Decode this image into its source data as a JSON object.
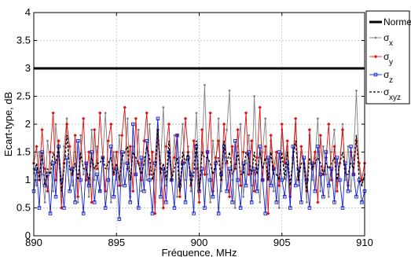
{
  "chart_data": {
    "type": "line",
    "title": "",
    "xlabel": "Fréquence, MHz",
    "ylabel": "Ecart-type, dB",
    "xlim": [
      890,
      910
    ],
    "ylim": [
      0,
      4
    ],
    "xticks": [
      "890",
      "895",
      "900",
      "905",
      "910"
    ],
    "yticks": [
      "0",
      "0.5",
      "1",
      "1.5",
      "2",
      "2.5",
      "3",
      "3.5",
      "4"
    ],
    "grid": true,
    "legend_position": "right",
    "legend": [
      {
        "key": "norme",
        "label": "Norme",
        "sub": ""
      },
      {
        "key": "sx",
        "label": "σ",
        "sub": "x"
      },
      {
        "key": "sy",
        "label": "σ",
        "sub": "y"
      },
      {
        "key": "sz",
        "label": "σ",
        "sub": "z"
      },
      {
        "key": "sxyz",
        "label": "σ",
        "sub": "xyz"
      }
    ],
    "colors": {
      "norme": "#000000",
      "sx": "#808080",
      "sy": "#e01010",
      "sz": "#1020d0",
      "sxyz": "#000000"
    },
    "series": [
      {
        "key": "norme",
        "x": [
          890,
          910
        ],
        "values": [
          3,
          3
        ]
      },
      {
        "key": "sx",
        "x": [
          890.0,
          890.17,
          890.33,
          890.5,
          890.67,
          890.83,
          891.0,
          891.17,
          891.33,
          891.5,
          891.67,
          891.83,
          892.0,
          892.17,
          892.33,
          892.5,
          892.67,
          892.83,
          893.0,
          893.17,
          893.33,
          893.5,
          893.67,
          893.83,
          894.0,
          894.17,
          894.33,
          894.5,
          894.67,
          894.83,
          895.0,
          895.17,
          895.33,
          895.5,
          895.67,
          895.83,
          896.0,
          896.17,
          896.33,
          896.5,
          896.67,
          896.83,
          897.0,
          897.17,
          897.33,
          897.5,
          897.67,
          897.83,
          898.0,
          898.17,
          898.33,
          898.5,
          898.67,
          898.83,
          899.0,
          899.17,
          899.33,
          899.5,
          899.67,
          899.83,
          900.0,
          900.17,
          900.33,
          900.5,
          900.67,
          900.83,
          901.0,
          901.17,
          901.33,
          901.5,
          901.67,
          901.83,
          902.0,
          902.17,
          902.33,
          902.5,
          902.67,
          902.83,
          903.0,
          903.17,
          903.33,
          903.5,
          903.67,
          903.83,
          904.0,
          904.17,
          904.33,
          904.5,
          904.67,
          904.83,
          905.0,
          905.17,
          905.33,
          905.5,
          905.67,
          905.83,
          906.0,
          906.17,
          906.33,
          906.5,
          906.67,
          906.83,
          907.0,
          907.17,
          907.33,
          907.5,
          907.67,
          907.83,
          908.0,
          908.17,
          908.33,
          908.5,
          908.67,
          908.83,
          909.0,
          909.17,
          909.33,
          909.5,
          909.67,
          909.83,
          910.0
        ],
        "values": [
          1.2,
          0.9,
          1.5,
          1.1,
          0.6,
          1.7,
          1.3,
          0.8,
          2.0,
          1.4,
          0.7,
          1.6,
          2.1,
          1.2,
          0.9,
          1.5,
          0.6,
          1.8,
          1.1,
          1.3,
          0.7,
          1.9,
          1.0,
          1.6,
          0.8,
          1.4,
          2.2,
          1.2,
          0.6,
          1.5,
          1.0,
          1.8,
          0.9,
          1.3,
          2.1,
          0.7,
          1.6,
          1.1,
          1.9,
          0.8,
          1.4,
          1.0,
          2.0,
          1.2,
          0.6,
          1.7,
          1.3,
          2.3,
          0.9,
          1.5,
          1.1,
          1.8,
          0.7,
          1.4,
          2.0,
          1.0,
          1.6,
          0.8,
          1.3,
          2.2,
          0.9,
          1.5,
          2.7,
          1.1,
          0.6,
          1.7,
          1.2,
          2.1,
          0.8,
          1.4,
          1.9,
          2.6,
          1.0,
          0.5,
          1.6,
          2.0,
          0.7,
          1.3,
          1.8,
          0.9,
          2.5,
          1.2,
          0.6,
          1.5,
          2.1,
          1.0,
          1.7,
          0.8,
          1.4,
          0.5,
          1.9,
          1.1,
          1.6,
          0.7,
          1.3,
          2.0,
          0.9,
          1.5,
          1.2,
          0.6,
          1.8,
          1.0,
          1.4,
          2.1,
          0.8,
          1.6,
          1.1,
          0.7,
          1.5,
          1.9,
          0.9,
          1.3,
          2.0,
          1.0,
          1.6,
          0.8,
          1.4,
          2.6,
          1.2,
          0.9,
          1.1
        ]
      },
      {
        "key": "sy",
        "x": [
          890.0,
          890.17,
          890.33,
          890.5,
          890.67,
          890.83,
          891.0,
          891.17,
          891.33,
          891.5,
          891.67,
          891.83,
          892.0,
          892.17,
          892.33,
          892.5,
          892.67,
          892.83,
          893.0,
          893.17,
          893.33,
          893.5,
          893.67,
          893.83,
          894.0,
          894.17,
          894.33,
          894.5,
          894.67,
          894.83,
          895.0,
          895.17,
          895.33,
          895.5,
          895.67,
          895.83,
          896.0,
          896.17,
          896.33,
          896.5,
          896.67,
          896.83,
          897.0,
          897.17,
          897.33,
          897.5,
          897.67,
          897.83,
          898.0,
          898.17,
          898.33,
          898.5,
          898.67,
          898.83,
          899.0,
          899.17,
          899.33,
          899.5,
          899.67,
          899.83,
          900.0,
          900.17,
          900.33,
          900.5,
          900.67,
          900.83,
          901.0,
          901.17,
          901.33,
          901.5,
          901.67,
          901.83,
          902.0,
          902.17,
          902.33,
          902.5,
          902.67,
          902.83,
          903.0,
          903.17,
          903.33,
          903.5,
          903.67,
          903.83,
          904.0,
          904.17,
          904.33,
          904.5,
          904.67,
          904.83,
          905.0,
          905.17,
          905.33,
          905.5,
          905.67,
          905.83,
          906.0,
          906.17,
          906.33,
          906.5,
          906.67,
          906.83,
          907.0,
          907.17,
          907.33,
          907.5,
          907.67,
          907.83,
          908.0,
          908.17,
          908.33,
          908.5,
          908.67,
          908.83,
          909.0,
          909.17,
          909.33,
          909.5,
          909.67,
          909.83,
          910.0
        ],
        "values": [
          1.3,
          1.6,
          1.0,
          1.9,
          1.2,
          0.8,
          1.5,
          2.2,
          1.0,
          1.7,
          0.5,
          1.3,
          2.0,
          1.6,
          1.1,
          1.8,
          0.7,
          1.4,
          2.1,
          1.0,
          1.5,
          0.6,
          1.9,
          1.2,
          2.2,
          1.4,
          0.8,
          1.7,
          2.0,
          1.1,
          1.5,
          0.9,
          1.8,
          2.3,
          1.2,
          1.6,
          0.8,
          2.1,
          1.3,
          1.0,
          1.7,
          2.2,
          1.1,
          1.5,
          0.4,
          1.9,
          1.2,
          0.5,
          1.6,
          2.0,
          1.0,
          1.4,
          1.8,
          0.7,
          1.3,
          2.1,
          1.5,
          0.9,
          1.7,
          1.2,
          0.6,
          1.9,
          1.1,
          1.5,
          2.2,
          0.8,
          1.4,
          1.7,
          1.0,
          2.0,
          1.3,
          0.7,
          1.6,
          1.2,
          1.9,
          0.9,
          1.5,
          2.2,
          1.1,
          1.7,
          0.8,
          1.4,
          2.3,
          1.0,
          1.6,
          0.4,
          1.8,
          1.2,
          1.5,
          0.9,
          2.0,
          1.3,
          1.7,
          0.7,
          1.4,
          2.1,
          1.0,
          1.6,
          1.3,
          0.8,
          1.9,
          1.2,
          1.5,
          0.6,
          1.8,
          1.1,
          1.4,
          2.0,
          1.0,
          1.6,
          0.8,
          1.3,
          1.9,
          1.2,
          0.9,
          1.5,
          1.1,
          1.7,
          1.3,
          1.0,
          1.3
        ]
      },
      {
        "key": "sz",
        "x": [
          890.0,
          890.17,
          890.33,
          890.5,
          890.67,
          890.83,
          891.0,
          891.17,
          891.33,
          891.5,
          891.67,
          891.83,
          892.0,
          892.17,
          892.33,
          892.5,
          892.67,
          892.83,
          893.0,
          893.17,
          893.33,
          893.5,
          893.67,
          893.83,
          894.0,
          894.17,
          894.33,
          894.5,
          894.67,
          894.83,
          895.0,
          895.17,
          895.33,
          895.5,
          895.67,
          895.83,
          896.0,
          896.17,
          896.33,
          896.5,
          896.67,
          896.83,
          897.0,
          897.17,
          897.33,
          897.5,
          897.67,
          897.83,
          898.0,
          898.17,
          898.33,
          898.5,
          898.67,
          898.83,
          899.0,
          899.17,
          899.33,
          899.5,
          899.67,
          899.83,
          900.0,
          900.17,
          900.33,
          900.5,
          900.67,
          900.83,
          901.0,
          901.17,
          901.33,
          901.5,
          901.67,
          901.83,
          902.0,
          902.17,
          902.33,
          902.5,
          902.67,
          902.83,
          903.0,
          903.17,
          903.33,
          903.5,
          903.67,
          903.83,
          904.0,
          904.17,
          904.33,
          904.5,
          904.67,
          904.83,
          905.0,
          905.17,
          905.33,
          905.5,
          905.67,
          905.83,
          906.0,
          906.17,
          906.33,
          906.5,
          906.67,
          906.83,
          907.0,
          907.17,
          907.33,
          907.5,
          907.67,
          907.83,
          908.0,
          908.17,
          908.33,
          908.5,
          908.67,
          908.83,
          909.0,
          909.17,
          909.33,
          909.5,
          909.67,
          909.83,
          910.0
        ],
        "values": [
          0.8,
          1.2,
          0.5,
          1.5,
          0.9,
          1.1,
          0.4,
          1.3,
          0.7,
          1.6,
          1.0,
          0.5,
          1.4,
          0.8,
          1.2,
          0.6,
          1.7,
          1.0,
          0.4,
          1.3,
          0.9,
          1.5,
          0.6,
          1.1,
          0.8,
          1.4,
          0.5,
          1.0,
          1.6,
          0.7,
          1.2,
          0.3,
          1.5,
          0.9,
          1.3,
          0.6,
          2.0,
          1.1,
          0.5,
          1.4,
          0.8,
          1.7,
          1.0,
          0.4,
          1.3,
          2.1,
          0.7,
          1.2,
          0.6,
          1.5,
          1.0,
          0.5,
          1.8,
          0.9,
          1.3,
          0.6,
          1.4,
          1.1,
          0.4,
          1.6,
          0.8,
          1.2,
          0.5,
          1.5,
          1.0,
          0.7,
          1.3,
          0.4,
          1.1,
          1.6,
          0.8,
          1.2,
          0.6,
          1.7,
          1.0,
          0.5,
          1.3,
          0.9,
          1.5,
          0.6,
          1.2,
          0.8,
          1.6,
          1.0,
          0.4,
          1.4,
          0.9,
          1.2,
          0.6,
          1.5,
          1.0,
          0.7,
          1.3,
          0.5,
          1.6,
          0.9,
          1.2,
          0.6,
          1.4,
          1.0,
          0.5,
          1.3,
          0.8,
          1.6,
          1.1,
          0.7,
          1.5,
          0.9,
          1.2,
          0.6,
          1.4,
          1.0,
          0.5,
          1.3,
          0.8,
          1.6,
          1.1,
          0.7,
          1.0,
          0.6,
          0.8
        ]
      },
      {
        "key": "sxyz",
        "x": [
          890.0,
          890.17,
          890.33,
          890.5,
          890.67,
          890.83,
          891.0,
          891.17,
          891.33,
          891.5,
          891.67,
          891.83,
          892.0,
          892.17,
          892.33,
          892.5,
          892.67,
          892.83,
          893.0,
          893.17,
          893.33,
          893.5,
          893.67,
          893.83,
          894.0,
          894.17,
          894.33,
          894.5,
          894.67,
          894.83,
          895.0,
          895.17,
          895.33,
          895.5,
          895.67,
          895.83,
          896.0,
          896.17,
          896.33,
          896.5,
          896.67,
          896.83,
          897.0,
          897.17,
          897.33,
          897.5,
          897.67,
          897.83,
          898.0,
          898.17,
          898.33,
          898.5,
          898.67,
          898.83,
          899.0,
          899.17,
          899.33,
          899.5,
          899.67,
          899.83,
          900.0,
          900.17,
          900.33,
          900.5,
          900.67,
          900.83,
          901.0,
          901.17,
          901.33,
          901.5,
          901.67,
          901.83,
          902.0,
          902.17,
          902.33,
          902.5,
          902.67,
          902.83,
          903.0,
          903.17,
          903.33,
          903.5,
          903.67,
          903.83,
          904.0,
          904.17,
          904.33,
          904.5,
          904.67,
          904.83,
          905.0,
          905.17,
          905.33,
          905.5,
          905.67,
          905.83,
          906.0,
          906.17,
          906.33,
          906.5,
          906.67,
          906.83,
          907.0,
          907.17,
          907.33,
          907.5,
          907.67,
          907.83,
          908.0,
          908.17,
          908.33,
          908.5,
          908.67,
          908.83,
          909.0,
          909.17,
          909.33,
          909.5,
          909.67,
          909.83,
          910.0
        ],
        "values": [
          1.1,
          1.3,
          1.0,
          1.5,
          0.9,
          1.2,
          1.1,
          1.5,
          1.3,
          1.6,
          0.8,
          1.2,
          1.8,
          1.2,
          1.1,
          1.3,
          1.0,
          1.5,
          1.2,
          1.2,
          1.0,
          1.4,
          1.2,
          1.3,
          1.3,
          1.4,
          1.2,
          1.3,
          1.4,
          1.1,
          1.3,
          1.0,
          1.4,
          1.5,
          1.6,
          1.0,
          1.5,
          1.4,
          1.3,
          1.1,
          1.3,
          1.6,
          1.4,
          1.0,
          1.2,
          1.9,
          1.1,
          1.3,
          1.0,
          1.7,
          1.0,
          1.2,
          1.4,
          0.8,
          1.5,
          1.3,
          1.5,
          0.9,
          1.1,
          1.7,
          0.8,
          1.5,
          1.4,
          1.4,
          1.3,
          1.1,
          1.3,
          1.4,
          1.0,
          1.7,
          1.3,
          1.5,
          1.1,
          1.2,
          1.5,
          1.1,
          1.1,
          1.5,
          1.4,
          1.1,
          1.5,
          1.1,
          1.5,
          1.2,
          1.4,
          1.0,
          1.5,
          1.1,
          1.1,
          1.0,
          1.5,
          1.0,
          1.5,
          0.9,
          1.4,
          1.7,
          1.0,
          1.3,
          1.3,
          0.8,
          1.4,
          1.2,
          1.3,
          1.4,
          1.3,
          1.1,
          1.3,
          1.2,
          1.3,
          1.4,
          1.0,
          1.3,
          1.5,
          1.1,
          1.1,
          1.3,
          1.2,
          1.8,
          1.0,
          0.9,
          1.1
        ]
      }
    ]
  }
}
